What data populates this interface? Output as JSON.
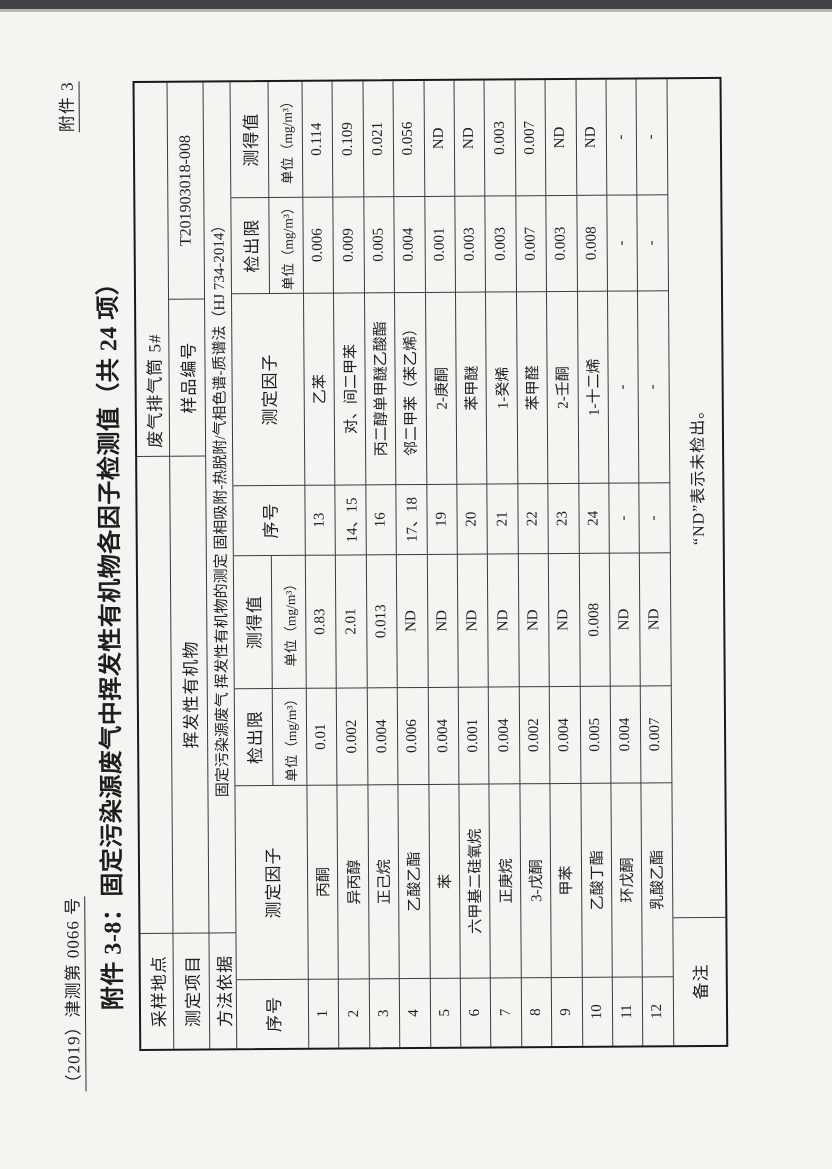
{
  "page": {
    "doc_number": "（2019）津测第 0066 号",
    "attachment_label": "附件 3",
    "title": "附件 3-8：固定污染源废气中挥发性有机物各因子检测值（共 24 项）"
  },
  "info": {
    "sampling_site_label": "采样地点",
    "sampling_site_value": "废气排气筒 5#",
    "project_label": "测定项目",
    "project_value": "挥发性有机物",
    "sample_no_label": "样品编号",
    "sample_no_value": "T201903018-008",
    "method_label": "方法依据",
    "method_value": "固定污染源废气 挥发性有机物的测定 固相吸附-热脱附/气相色谱-质谱法（HJ 734-2014）"
  },
  "table": {
    "headers": {
      "seq": "序号",
      "factor": "测定因子",
      "detection_limit": "检出限",
      "measured": "测得值",
      "unit": "单位（mg/m³）"
    },
    "rows": [
      [
        "1",
        "丙酮",
        "0.01",
        "0.83",
        "13",
        "乙苯",
        "0.006",
        "0.114"
      ],
      [
        "2",
        "异丙醇",
        "0.002",
        "2.01",
        "14、15",
        "对、间二甲苯",
        "0.009",
        "0.109"
      ],
      [
        "3",
        "正己烷",
        "0.004",
        "0.013",
        "16",
        "丙二醇单甲醚乙酸酯",
        "0.005",
        "0.021"
      ],
      [
        "4",
        "乙酸乙酯",
        "0.006",
        "ND",
        "17、18",
        "邻二甲苯（苯乙烯）",
        "0.004",
        "0.056"
      ],
      [
        "5",
        "苯",
        "0.004",
        "ND",
        "19",
        "2-庚酮",
        "0.001",
        "ND"
      ],
      [
        "6",
        "六甲基二硅氧烷",
        "0.001",
        "ND",
        "20",
        "苯甲醚",
        "0.003",
        "ND"
      ],
      [
        "7",
        "正庚烷",
        "0.004",
        "ND",
        "21",
        "1-癸烯",
        "0.003",
        "0.003"
      ],
      [
        "8",
        "3-戊酮",
        "0.002",
        "ND",
        "22",
        "苯甲醛",
        "0.007",
        "0.007"
      ],
      [
        "9",
        "甲苯",
        "0.004",
        "ND",
        "23",
        "2-壬酮",
        "0.003",
        "ND"
      ],
      [
        "10",
        "乙酸丁酯",
        "0.005",
        "0.008",
        "24",
        "1-十二烯",
        "0.008",
        "ND"
      ],
      [
        "11",
        "环戊酮",
        "0.004",
        "ND",
        "-",
        "-",
        "-",
        "-"
      ],
      [
        "12",
        "乳酸乙酯",
        "0.007",
        "ND",
        "-",
        "-",
        "-",
        "-"
      ]
    ],
    "remark_label": "备注",
    "remark_note": "“ND”表示未检出。"
  }
}
